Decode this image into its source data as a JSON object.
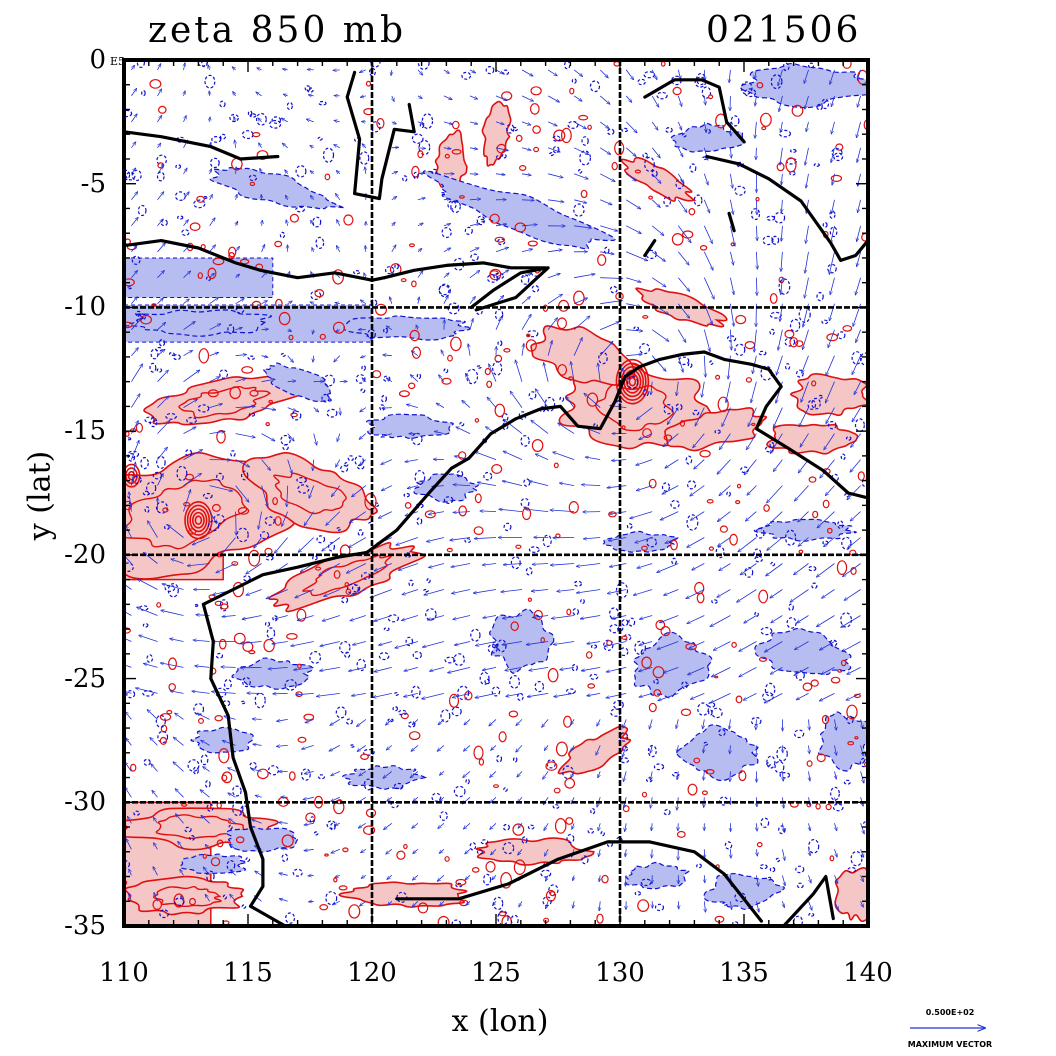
{
  "title_left": "zeta 850 mb",
  "title_right": "021506",
  "exponent_label": "E5",
  "axes": {
    "xlabel": "x (lon)",
    "ylabel": "y (lat)",
    "x_ticks": [
      "110",
      "115",
      "120",
      "125",
      "130",
      "135",
      "140"
    ],
    "y_ticks": [
      "0",
      "-5",
      "-10",
      "-15",
      "-20",
      "-25",
      "-30",
      "-35"
    ],
    "xlim": [
      110,
      140
    ],
    "ylim": [
      -35,
      0
    ]
  },
  "legend": {
    "vector_value": "0.500E+02",
    "vector_caption": "MAXIMUM VECTOR"
  },
  "colors": {
    "positive_fill": "#f5c6c6",
    "positive_contour": "#e01010",
    "negative_fill": "#b7bdf0",
    "negative_contour": "#1010d0",
    "coast": "#000000",
    "vectors": "#2030d8"
  },
  "features": {
    "coastline_lonlat": [
      [
        [
          113.2,
          -22.0
        ],
        [
          114.2,
          -21.5
        ],
        [
          115.6,
          -20.8
        ],
        [
          117.0,
          -20.5
        ],
        [
          118.6,
          -20.1
        ],
        [
          119.8,
          -19.9
        ],
        [
          121.0,
          -19.0
        ],
        [
          122.3,
          -17.5
        ],
        [
          123.2,
          -16.5
        ],
        [
          123.9,
          -16.1
        ],
        [
          124.8,
          -15.1
        ],
        [
          125.8,
          -14.5
        ],
        [
          126.8,
          -14.1
        ],
        [
          127.6,
          -14.0
        ],
        [
          128.3,
          -14.8
        ],
        [
          129.2,
          -14.9
        ],
        [
          129.8,
          -13.8
        ],
        [
          130.2,
          -12.8
        ],
        [
          130.8,
          -12.4
        ],
        [
          131.6,
          -12.1
        ],
        [
          132.5,
          -11.9
        ],
        [
          133.4,
          -11.8
        ],
        [
          134.2,
          -12.1
        ],
        [
          135.3,
          -12.3
        ],
        [
          136.0,
          -12.5
        ],
        [
          136.5,
          -13.2
        ],
        [
          135.9,
          -14.0
        ],
        [
          135.5,
          -14.9
        ],
        [
          136.8,
          -15.7
        ],
        [
          138.2,
          -16.6
        ],
        [
          139.2,
          -17.5
        ],
        [
          140.0,
          -17.7
        ]
      ],
      [
        [
          113.2,
          -22.0
        ],
        [
          113.6,
          -23.5
        ],
        [
          113.5,
          -25.0
        ],
        [
          114.2,
          -26.5
        ],
        [
          114.4,
          -28.2
        ],
        [
          114.9,
          -29.6
        ],
        [
          115.1,
          -31.0
        ],
        [
          115.6,
          -32.3
        ],
        [
          115.6,
          -33.4
        ],
        [
          115.1,
          -34.2
        ],
        [
          116.5,
          -35.0
        ],
        [
          118.0,
          -35.0
        ]
      ],
      [
        [
          121.0,
          -33.9
        ],
        [
          123.5,
          -33.9
        ],
        [
          125.5,
          -33.3
        ],
        [
          127.5,
          -32.3
        ],
        [
          129.5,
          -31.6
        ],
        [
          131.2,
          -31.6
        ],
        [
          133.0,
          -32.0
        ],
        [
          134.2,
          -32.9
        ],
        [
          135.7,
          -34.8
        ]
      ],
      [
        [
          136.6,
          -35.0
        ],
        [
          137.8,
          -33.7
        ],
        [
          138.3,
          -33.0
        ],
        [
          138.6,
          -34.7
        ]
      ],
      [
        [
          120.5,
          -8.8
        ],
        [
          121.7,
          -8.5
        ],
        [
          123.0,
          -8.3
        ],
        [
          124.5,
          -8.2
        ],
        [
          125.6,
          -8.4
        ],
        [
          127.0,
          -8.4
        ]
      ],
      [
        [
          124.0,
          -10.0
        ],
        [
          124.9,
          -9.3
        ],
        [
          126.0,
          -8.6
        ],
        [
          127.1,
          -8.4
        ],
        [
          125.8,
          -9.6
        ],
        [
          124.2,
          -10.1
        ]
      ],
      [
        [
          110.0,
          -7.5
        ],
        [
          111.5,
          -7.3
        ],
        [
          113.0,
          -7.6
        ],
        [
          114.5,
          -8.2
        ],
        [
          115.5,
          -8.5
        ],
        [
          117.0,
          -8.8
        ],
        [
          118.5,
          -8.6
        ],
        [
          120.0,
          -8.9
        ],
        [
          120.5,
          -8.8
        ]
      ],
      [
        [
          133.5,
          -3.9
        ],
        [
          134.8,
          -4.2
        ],
        [
          136.0,
          -4.8
        ],
        [
          137.3,
          -5.7
        ],
        [
          138.5,
          -7.4
        ],
        [
          138.9,
          -8.1
        ],
        [
          139.5,
          -7.9
        ],
        [
          140.0,
          -7.3
        ]
      ],
      [
        [
          131.0,
          -1.5
        ],
        [
          132.2,
          -0.8
        ],
        [
          133.3,
          -0.8
        ],
        [
          134.0,
          -1.1
        ],
        [
          134.3,
          -2.5
        ],
        [
          135.0,
          -3.3
        ]
      ],
      [
        [
          119.3,
          -0.5
        ],
        [
          119.0,
          -1.5
        ],
        [
          119.5,
          -3.2
        ],
        [
          119.3,
          -5.4
        ],
        [
          120.3,
          -5.6
        ],
        [
          120.4,
          -4.8
        ],
        [
          120.9,
          -2.8
        ],
        [
          121.7,
          -2.9
        ],
        [
          121.5,
          -1.8
        ]
      ],
      [
        [
          110.0,
          -2.9
        ],
        [
          111.5,
          -3.1
        ],
        [
          113.5,
          -3.5
        ],
        [
          114.7,
          -4.0
        ],
        [
          116.2,
          -3.9
        ]
      ],
      [
        [
          134.4,
          -6.2
        ],
        [
          134.6,
          -6.9
        ]
      ],
      [
        [
          131.4,
          -7.3
        ],
        [
          131.0,
          -7.9
        ]
      ]
    ],
    "vorticity_blobs": [
      {
        "sign": "+",
        "lon": 112.5,
        "lat": -18.3,
        "rx": 4.5,
        "ry": 2.2,
        "rot": -15
      },
      {
        "sign": "+",
        "lon": 114.0,
        "lat": -13.8,
        "rx": 3.0,
        "ry": 0.9,
        "rot": -10
      },
      {
        "sign": "+",
        "lon": 117.5,
        "lat": -17.5,
        "rx": 2.8,
        "ry": 1.2,
        "rot": 20
      },
      {
        "sign": "+",
        "lon": 119.0,
        "lat": -20.8,
        "rx": 3.2,
        "ry": 0.8,
        "rot": -20
      },
      {
        "sign": "+",
        "lon": 130.5,
        "lat": -14.0,
        "rx": 2.8,
        "ry": 1.6,
        "rot": 0
      },
      {
        "sign": "+",
        "lon": 128.5,
        "lat": -12.0,
        "rx": 2.0,
        "ry": 1.0,
        "rot": 20
      },
      {
        "sign": "+",
        "lon": 134.0,
        "lat": -14.9,
        "rx": 2.0,
        "ry": 0.7,
        "rot": -10
      },
      {
        "sign": "+",
        "lon": 138.5,
        "lat": -13.5,
        "rx": 1.6,
        "ry": 0.8,
        "rot": 0
      },
      {
        "sign": "+",
        "lon": 137.8,
        "lat": -15.3,
        "rx": 2.0,
        "ry": 0.6,
        "rot": 0
      },
      {
        "sign": "+",
        "lon": 113.0,
        "lat": -31.0,
        "rx": 3.0,
        "ry": 0.8,
        "rot": 0
      },
      {
        "sign": "+",
        "lon": 112.5,
        "lat": -33.8,
        "rx": 2.6,
        "ry": 0.7,
        "rot": 0
      },
      {
        "sign": "+",
        "lon": 121.5,
        "lat": -33.7,
        "rx": 2.5,
        "ry": 0.5,
        "rot": 0
      },
      {
        "sign": "+",
        "lon": 126.5,
        "lat": -32.0,
        "rx": 2.2,
        "ry": 0.5,
        "rot": 0
      },
      {
        "sign": "+",
        "lon": 129.0,
        "lat": -28.0,
        "rx": 1.5,
        "ry": 0.6,
        "rot": -30
      },
      {
        "sign": "+",
        "lon": 139.5,
        "lat": -33.7,
        "rx": 0.8,
        "ry": 1.0,
        "rot": 0
      },
      {
        "sign": "+",
        "lon": 131.5,
        "lat": -4.8,
        "rx": 1.5,
        "ry": 0.5,
        "rot": 30
      },
      {
        "sign": "+",
        "lon": 123.2,
        "lat": -4.2,
        "rx": 0.6,
        "ry": 1.2,
        "rot": 10
      },
      {
        "sign": "+",
        "lon": 125.0,
        "lat": -3.0,
        "rx": 0.5,
        "ry": 1.2,
        "rot": 10
      },
      {
        "sign": "+",
        "lon": 132.5,
        "lat": -10.0,
        "rx": 2.0,
        "ry": 0.5,
        "rot": 20
      },
      {
        "sign": "-",
        "lon": 113.0,
        "lat": -10.6,
        "rx": 3.0,
        "ry": 0.5,
        "rot": 0
      },
      {
        "sign": "-",
        "lon": 121.5,
        "lat": -10.8,
        "rx": 2.5,
        "ry": 0.5,
        "rot": 0
      },
      {
        "sign": "-",
        "lon": 126.0,
        "lat": -6.2,
        "rx": 4.0,
        "ry": 0.7,
        "rot": 20
      },
      {
        "sign": "-",
        "lon": 116.0,
        "lat": -5.2,
        "rx": 2.5,
        "ry": 0.6,
        "rot": 15
      },
      {
        "sign": "-",
        "lon": 137.5,
        "lat": -1.0,
        "rx": 2.5,
        "ry": 0.8,
        "rot": 0
      },
      {
        "sign": "-",
        "lon": 133.5,
        "lat": -3.2,
        "rx": 1.4,
        "ry": 0.6,
        "rot": 0
      },
      {
        "sign": "-",
        "lon": 117.0,
        "lat": -13.0,
        "rx": 1.5,
        "ry": 0.5,
        "rot": 20
      },
      {
        "sign": "-",
        "lon": 121.5,
        "lat": -14.8,
        "rx": 1.6,
        "ry": 0.5,
        "rot": 0
      },
      {
        "sign": "-",
        "lon": 116.0,
        "lat": -24.8,
        "rx": 1.5,
        "ry": 0.6,
        "rot": 0
      },
      {
        "sign": "-",
        "lon": 114.0,
        "lat": -27.5,
        "rx": 1.2,
        "ry": 0.5,
        "rot": 0
      },
      {
        "sign": "-",
        "lon": 126.0,
        "lat": -23.5,
        "rx": 1.2,
        "ry": 1.2,
        "rot": 0
      },
      {
        "sign": "-",
        "lon": 132.0,
        "lat": -24.5,
        "rx": 1.6,
        "ry": 1.2,
        "rot": 0
      },
      {
        "sign": "-",
        "lon": 137.5,
        "lat": -24.0,
        "rx": 1.8,
        "ry": 0.9,
        "rot": 10
      },
      {
        "sign": "-",
        "lon": 134.0,
        "lat": -28.0,
        "rx": 1.5,
        "ry": 1.0,
        "rot": 0
      },
      {
        "sign": "-",
        "lon": 139.0,
        "lat": -27.5,
        "rx": 1.0,
        "ry": 1.1,
        "rot": 0
      },
      {
        "sign": "-",
        "lon": 135.0,
        "lat": -33.6,
        "rx": 1.5,
        "ry": 0.7,
        "rot": 0
      },
      {
        "sign": "-",
        "lon": 131.5,
        "lat": -33.0,
        "rx": 1.3,
        "ry": 0.5,
        "rot": 0
      },
      {
        "sign": "-",
        "lon": 115.5,
        "lat": -31.5,
        "rx": 1.4,
        "ry": 0.5,
        "rot": 0
      },
      {
        "sign": "-",
        "lon": 120.5,
        "lat": -29.0,
        "rx": 1.5,
        "ry": 0.5,
        "rot": 0
      },
      {
        "sign": "-",
        "lon": 113.5,
        "lat": -32.5,
        "rx": 1.4,
        "ry": 0.4,
        "rot": 0
      },
      {
        "sign": "-",
        "lon": 123.0,
        "lat": -17.3,
        "rx": 1.2,
        "ry": 0.5,
        "rot": 0
      },
      {
        "sign": "-",
        "lon": 130.8,
        "lat": -19.5,
        "rx": 1.5,
        "ry": 0.4,
        "rot": 0
      },
      {
        "sign": "-",
        "lon": 137.5,
        "lat": -19.0,
        "rx": 2.0,
        "ry": 0.4,
        "rot": 0
      }
    ],
    "negative_bands": [
      {
        "lat_top": -8.0,
        "lat_bottom": -9.6,
        "lon_left": 110.0,
        "lon_right": 116.0
      },
      {
        "lat_top": -9.9,
        "lat_bottom": -11.4,
        "lon_left": 110.0,
        "lon_right": 120.0
      },
      {
        "lat_top": -19.6,
        "lat_bottom": -20.2,
        "lon_left": 110.0,
        "lon_right": 113.0
      }
    ],
    "positive_bands": [
      {
        "lat_top": -30.0,
        "lat_bottom": -35.0,
        "lon_left": 110.0,
        "lon_right": 113.5
      },
      {
        "lat_top": -20.0,
        "lat_bottom": -21.0,
        "lon_left": 110.0,
        "lon_right": 114.0
      }
    ]
  }
}
